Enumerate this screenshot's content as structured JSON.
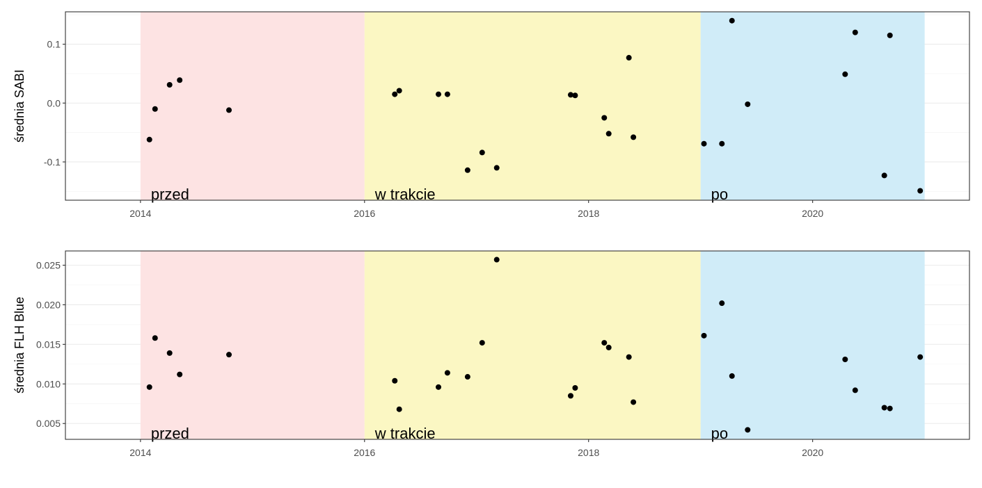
{
  "colors": {
    "przed": "#fde3e3",
    "w_trakcie": "#fbf7c3",
    "po": "#d0ecf8",
    "point": "#000000",
    "grid_major": "#ebebeb",
    "grid_minor": "#f4f4f4",
    "panel_border": "#333333"
  },
  "chart_data": [
    {
      "type": "scatter",
      "ylabel": "średnia SABI",
      "xlabel": "",
      "xlim": [
        2013.33,
        2021.4
      ],
      "ylim": [
        -0.165,
        0.155
      ],
      "x_ticks": [
        2014,
        2016,
        2018,
        2020
      ],
      "x_tick_labels": [
        "2014",
        "2016",
        "2018",
        "2020"
      ],
      "y_ticks": [
        -0.1,
        0.0,
        0.1
      ],
      "y_tick_labels": [
        "-0.1",
        "0.0",
        "0.1"
      ],
      "y_minor": [
        -0.15,
        -0.05,
        0.05,
        0.15
      ],
      "grid": true,
      "regions": [
        {
          "label": "przed",
          "start": 2014,
          "end": 2016,
          "color": "#fde3e3"
        },
        {
          "label": "w trakcie",
          "start": 2016,
          "end": 2019,
          "color": "#fbf7c3"
        },
        {
          "label": "po",
          "start": 2019,
          "end": 2021,
          "color": "#d0ecf8"
        }
      ],
      "points": [
        {
          "x": 2014.08,
          "y": -0.062
        },
        {
          "x": 2014.13,
          "y": -0.01
        },
        {
          "x": 2014.26,
          "y": 0.031
        },
        {
          "x": 2014.35,
          "y": 0.039
        },
        {
          "x": 2014.79,
          "y": -0.012
        },
        {
          "x": 2016.27,
          "y": 0.015
        },
        {
          "x": 2016.31,
          "y": 0.021
        },
        {
          "x": 2016.66,
          "y": 0.015
        },
        {
          "x": 2016.74,
          "y": 0.015
        },
        {
          "x": 2016.92,
          "y": -0.114
        },
        {
          "x": 2017.05,
          "y": -0.084
        },
        {
          "x": 2017.18,
          "y": -0.11
        },
        {
          "x": 2017.84,
          "y": 0.014
        },
        {
          "x": 2017.88,
          "y": 0.013
        },
        {
          "x": 2018.14,
          "y": -0.025
        },
        {
          "x": 2018.18,
          "y": -0.052
        },
        {
          "x": 2018.36,
          "y": 0.077
        },
        {
          "x": 2018.4,
          "y": -0.058
        },
        {
          "x": 2019.03,
          "y": -0.069
        },
        {
          "x": 2019.19,
          "y": -0.069
        },
        {
          "x": 2019.28,
          "y": 0.14
        },
        {
          "x": 2019.42,
          "y": -0.002
        },
        {
          "x": 2020.29,
          "y": 0.049
        },
        {
          "x": 2020.38,
          "y": 0.12
        },
        {
          "x": 2020.64,
          "y": -0.123
        },
        {
          "x": 2020.69,
          "y": 0.115
        },
        {
          "x": 2020.96,
          "y": -0.149
        }
      ]
    },
    {
      "type": "scatter",
      "ylabel": "średnia FLH Blue",
      "xlabel": "",
      "xlim": [
        2013.33,
        2021.4
      ],
      "ylim": [
        0.003,
        0.0268
      ],
      "x_ticks": [
        2014,
        2016,
        2018,
        2020
      ],
      "x_tick_labels": [
        "2014",
        "2016",
        "2018",
        "2020"
      ],
      "y_ticks": [
        0.005,
        0.01,
        0.015,
        0.02,
        0.025
      ],
      "y_tick_labels": [
        "0.005",
        "0.010",
        "0.015",
        "0.020",
        "0.025"
      ],
      "y_minor": [
        0.0075,
        0.0125,
        0.0175,
        0.0225
      ],
      "grid": true,
      "regions": [
        {
          "label": "przed",
          "start": 2014,
          "end": 2016,
          "color": "#fde3e3"
        },
        {
          "label": "w trakcie",
          "start": 2016,
          "end": 2019,
          "color": "#fbf7c3"
        },
        {
          "label": "po",
          "start": 2019,
          "end": 2021,
          "color": "#d0ecf8"
        }
      ],
      "points": [
        {
          "x": 2014.08,
          "y": 0.0096
        },
        {
          "x": 2014.13,
          "y": 0.0158
        },
        {
          "x": 2014.26,
          "y": 0.0139
        },
        {
          "x": 2014.35,
          "y": 0.0112
        },
        {
          "x": 2014.79,
          "y": 0.0137
        },
        {
          "x": 2016.27,
          "y": 0.0104
        },
        {
          "x": 2016.31,
          "y": 0.0068
        },
        {
          "x": 2016.66,
          "y": 0.0096
        },
        {
          "x": 2016.74,
          "y": 0.0114
        },
        {
          "x": 2016.92,
          "y": 0.0109
        },
        {
          "x": 2017.05,
          "y": 0.0152
        },
        {
          "x": 2017.18,
          "y": 0.0257
        },
        {
          "x": 2017.84,
          "y": 0.0085
        },
        {
          "x": 2017.88,
          "y": 0.0095
        },
        {
          "x": 2018.14,
          "y": 0.0152
        },
        {
          "x": 2018.18,
          "y": 0.0146
        },
        {
          "x": 2018.36,
          "y": 0.0134
        },
        {
          "x": 2018.4,
          "y": 0.0077
        },
        {
          "x": 2019.03,
          "y": 0.0161
        },
        {
          "x": 2019.19,
          "y": 0.0202
        },
        {
          "x": 2019.28,
          "y": 0.011
        },
        {
          "x": 2019.42,
          "y": 0.0042
        },
        {
          "x": 2020.29,
          "y": 0.0131
        },
        {
          "x": 2020.38,
          "y": 0.0092
        },
        {
          "x": 2020.64,
          "y": 0.007
        },
        {
          "x": 2020.69,
          "y": 0.0069
        },
        {
          "x": 2020.96,
          "y": 0.0134
        }
      ]
    }
  ]
}
